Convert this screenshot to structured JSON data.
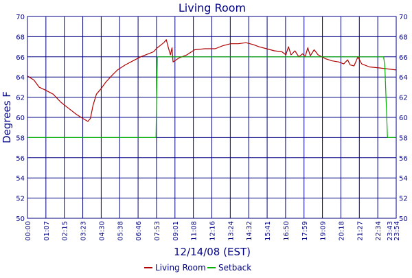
{
  "chart_data": {
    "type": "line",
    "title": "Living Room",
    "xlabel": "12/14/08 (EST)",
    "ylabel": "Degrees F",
    "ylim": [
      50,
      70
    ],
    "yticks": [
      50,
      52,
      54,
      56,
      58,
      60,
      62,
      64,
      66,
      68,
      70
    ],
    "xtick_labels": [
      "00:00",
      "01:07",
      "02:15",
      "03:23",
      "04:30",
      "05:38",
      "06:46",
      "07:53",
      "09:01",
      "11:08",
      "12:16",
      "13:24",
      "14:32",
      "15:41",
      "16:50",
      "17:59",
      "19:09",
      "20:18",
      "21:27",
      "22:34",
      "23:43",
      "23:54"
    ],
    "xlim_minutes": [
      0,
      1434
    ],
    "grid": true,
    "legend_position": "bottom",
    "colors": {
      "grid": "#000080",
      "text": "#000080",
      "series_1": "#b00000",
      "series_2": "#00b000"
    },
    "series": [
      {
        "name": "Living Room",
        "points": [
          [
            0,
            64.1
          ],
          [
            25,
            63.7
          ],
          [
            45,
            63.0
          ],
          [
            70,
            62.7
          ],
          [
            100,
            62.3
          ],
          [
            130,
            61.5
          ],
          [
            160,
            60.9
          ],
          [
            190,
            60.3
          ],
          [
            215,
            59.9
          ],
          [
            235,
            59.6
          ],
          [
            245,
            59.9
          ],
          [
            255,
            61.2
          ],
          [
            268,
            62.3
          ],
          [
            285,
            62.8
          ],
          [
            305,
            63.5
          ],
          [
            330,
            64.2
          ],
          [
            350,
            64.7
          ],
          [
            380,
            65.2
          ],
          [
            410,
            65.6
          ],
          [
            440,
            66.0
          ],
          [
            470,
            66.3
          ],
          [
            490,
            66.5
          ],
          [
            505,
            66.9
          ],
          [
            520,
            67.2
          ],
          [
            530,
            67.4
          ],
          [
            540,
            67.7
          ],
          [
            548,
            66.9
          ],
          [
            556,
            66.2
          ],
          [
            562,
            66.9
          ],
          [
            566,
            65.5
          ],
          [
            590,
            65.9
          ],
          [
            620,
            66.2
          ],
          [
            650,
            66.7
          ],
          [
            690,
            66.8
          ],
          [
            730,
            66.8
          ],
          [
            760,
            67.1
          ],
          [
            790,
            67.3
          ],
          [
            820,
            67.3
          ],
          [
            850,
            67.4
          ],
          [
            880,
            67.2
          ],
          [
            900,
            67.0
          ],
          [
            930,
            66.8
          ],
          [
            960,
            66.6
          ],
          [
            990,
            66.5
          ],
          [
            1005,
            66.2
          ],
          [
            1015,
            67.0
          ],
          [
            1025,
            66.2
          ],
          [
            1040,
            66.6
          ],
          [
            1055,
            66.0
          ],
          [
            1070,
            66.3
          ],
          [
            1080,
            66.0
          ],
          [
            1090,
            66.9
          ],
          [
            1100,
            66.1
          ],
          [
            1115,
            66.7
          ],
          [
            1130,
            66.2
          ],
          [
            1160,
            65.8
          ],
          [
            1185,
            65.6
          ],
          [
            1210,
            65.5
          ],
          [
            1230,
            65.3
          ],
          [
            1245,
            65.7
          ],
          [
            1255,
            65.2
          ],
          [
            1270,
            65.1
          ],
          [
            1285,
            66.0
          ],
          [
            1300,
            65.3
          ],
          [
            1330,
            65.0
          ],
          [
            1370,
            64.9
          ],
          [
            1400,
            64.8
          ],
          [
            1434,
            64.7
          ]
        ]
      },
      {
        "name": "Setback",
        "points": [
          [
            0,
            58
          ],
          [
            500,
            58
          ],
          [
            500,
            58
          ],
          [
            505,
            66
          ],
          [
            1385,
            66
          ],
          [
            1390,
            65
          ],
          [
            1400,
            58
          ],
          [
            1434,
            58
          ]
        ]
      }
    ]
  }
}
